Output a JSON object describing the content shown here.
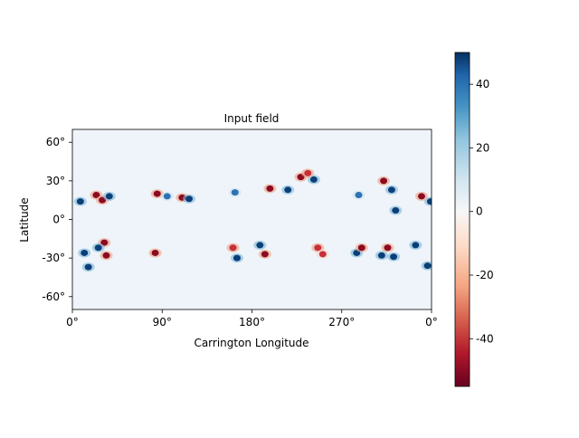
{
  "chart_data": {
    "type": "heatmap",
    "title": "Input field",
    "xlabel": "Carrington Longitude",
    "ylabel": "Latitude",
    "x_ticks": [
      "0°",
      "90°",
      "180°",
      "270°",
      "0°"
    ],
    "y_ticks": [
      "60°",
      "30°",
      "0°",
      "-30°",
      "-60°"
    ],
    "x_range": [
      0,
      360
    ],
    "y_range": [
      -70,
      70
    ],
    "colormap": "RdBu",
    "colorbar": {
      "min": -55,
      "max": 50,
      "ticks": [
        "40",
        "20",
        "0",
        "-20",
        "-40"
      ],
      "tick_values": [
        40,
        20,
        0,
        -20,
        -40
      ]
    },
    "regions": [
      {
        "lon": 8,
        "lat": 14,
        "value": 45
      },
      {
        "lon": 24,
        "lat": 19,
        "value": -55
      },
      {
        "lon": 30,
        "lat": 15,
        "value": -50
      },
      {
        "lon": 37,
        "lat": 18,
        "value": 50
      },
      {
        "lon": 12,
        "lat": -26,
        "value": 40
      },
      {
        "lon": 16,
        "lat": -37,
        "value": 45
      },
      {
        "lon": 32,
        "lat": -18,
        "value": -50
      },
      {
        "lon": 34,
        "lat": -28,
        "value": -50
      },
      {
        "lon": 26,
        "lat": -22,
        "value": 45
      },
      {
        "lon": 85,
        "lat": 20,
        "value": -55
      },
      {
        "lon": 95,
        "lat": 18,
        "value": 30
      },
      {
        "lon": 110,
        "lat": 17,
        "value": -55
      },
      {
        "lon": 117,
        "lat": 16,
        "value": 50
      },
      {
        "lon": 83,
        "lat": -26,
        "value": -50
      },
      {
        "lon": 163,
        "lat": 21,
        "value": 30
      },
      {
        "lon": 198,
        "lat": 24,
        "value": -45
      },
      {
        "lon": 216,
        "lat": 23,
        "value": 45
      },
      {
        "lon": 229,
        "lat": 33,
        "value": -45
      },
      {
        "lon": 242,
        "lat": 31,
        "value": 45
      },
      {
        "lon": 236,
        "lat": 36,
        "value": -40
      },
      {
        "lon": 161,
        "lat": -22,
        "value": -40
      },
      {
        "lon": 165,
        "lat": -30,
        "value": 45
      },
      {
        "lon": 188,
        "lat": -20,
        "value": 50
      },
      {
        "lon": 193,
        "lat": -27,
        "value": -45
      },
      {
        "lon": 246,
        "lat": -22,
        "value": -40
      },
      {
        "lon": 251,
        "lat": -27,
        "value": -30
      },
      {
        "lon": 285,
        "lat": -26,
        "value": 50
      },
      {
        "lon": 290,
        "lat": -22,
        "value": -45
      },
      {
        "lon": 316,
        "lat": -22,
        "value": -50
      },
      {
        "lon": 322,
        "lat": -29,
        "value": 40
      },
      {
        "lon": 310,
        "lat": -28,
        "value": 45
      },
      {
        "lon": 344,
        "lat": -20,
        "value": 40
      },
      {
        "lon": 312,
        "lat": 30,
        "value": -45
      },
      {
        "lon": 320,
        "lat": 23,
        "value": 50
      },
      {
        "lon": 324,
        "lat": 7,
        "value": 50
      },
      {
        "lon": 350,
        "lat": 18,
        "value": -45
      },
      {
        "lon": 359,
        "lat": 14,
        "value": 45
      },
      {
        "lon": 356,
        "lat": -36,
        "value": 50
      },
      {
        "lon": 287,
        "lat": 19,
        "value": 30
      }
    ]
  }
}
